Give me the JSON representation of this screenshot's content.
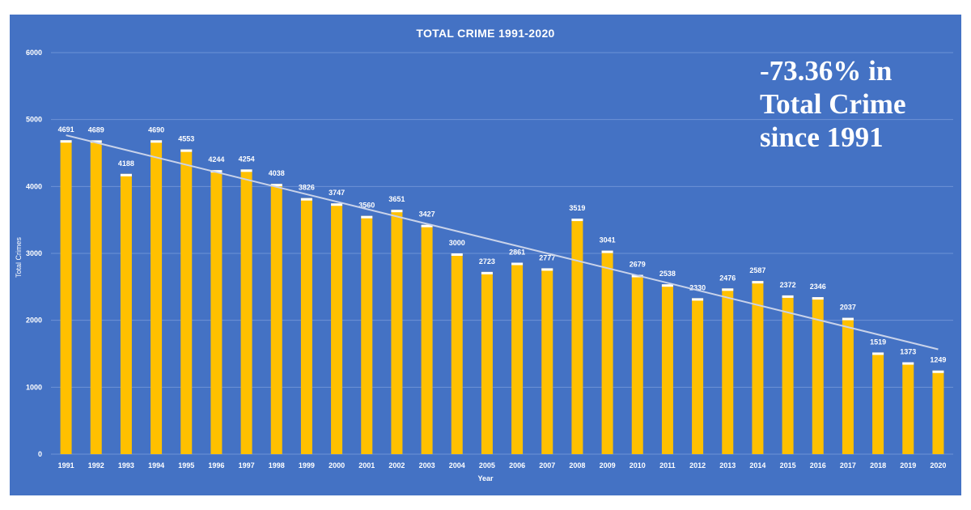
{
  "chart_data": {
    "type": "bar",
    "title": "TOTAL CRIME 1991-2020",
    "xlabel": "Year",
    "ylabel": "Total Crimes",
    "ylim": [
      0,
      6000
    ],
    "yticks": [
      0,
      1000,
      2000,
      3000,
      4000,
      5000,
      6000
    ],
    "grid": true,
    "trendline": true,
    "categories": [
      "1991",
      "1992",
      "1993",
      "1994",
      "1995",
      "1996",
      "1997",
      "1998",
      "1999",
      "2000",
      "2001",
      "2002",
      "2003",
      "2004",
      "2005",
      "2006",
      "2007",
      "2008",
      "2009",
      "2010",
      "2011",
      "2012",
      "2013",
      "2014",
      "2015",
      "2016",
      "2017",
      "2018",
      "2019",
      "2020"
    ],
    "series": [
      {
        "name": "Total Crimes",
        "values": [
          4691,
          4689,
          4188,
          4690,
          4553,
          4244,
          4254,
          4038,
          3826,
          3747,
          3560,
          3651,
          3427,
          3000,
          2723,
          2861,
          2777,
          3519,
          3041,
          2679,
          2538,
          2330,
          2476,
          2587,
          2372,
          2346,
          2037,
          1519,
          1373,
          1249
        ]
      }
    ],
    "annotation": {
      "line1": "-73.36% in",
      "line2": "Total Crime",
      "line3": "since 1991"
    }
  },
  "colors": {
    "background": "#4472C4",
    "bar": "#FFC000",
    "bar_cap": "#FFFFFF",
    "grid": "#6D93D6",
    "trend": "#C9D3EA",
    "text": "#FFFFFF"
  }
}
